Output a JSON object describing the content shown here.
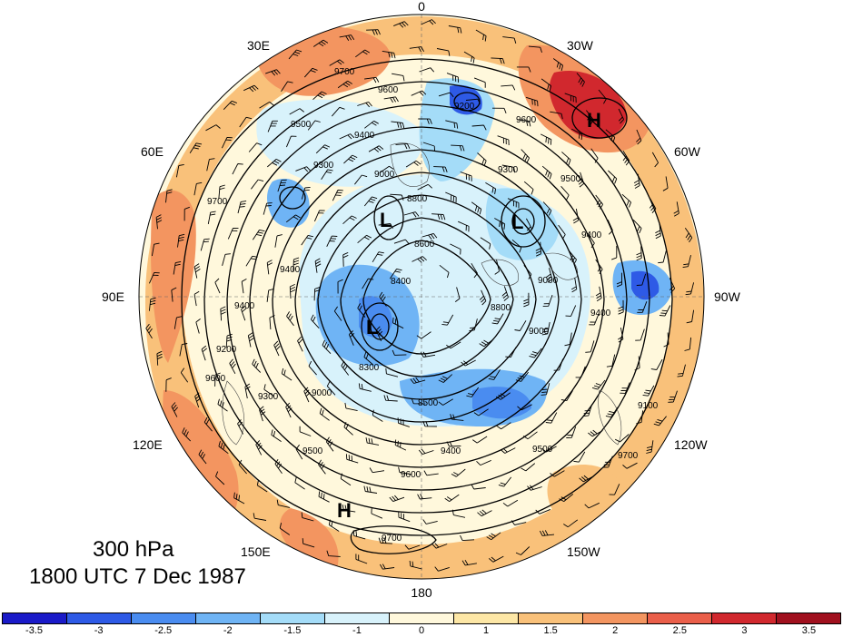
{
  "title": {
    "level": "300 hPa",
    "time": "1800 UTC 7 Dec 1987"
  },
  "longitude_labels": {
    "lon_0": "0",
    "lon_30e": "30E",
    "lon_30w": "30W",
    "lon_60e": "60E",
    "lon_60w": "60W",
    "lon_90e": "90E",
    "lon_90w": "90W",
    "lon_120e": "120E",
    "lon_120w": "120W",
    "lon_150e": "150E",
    "lon_150w": "150W",
    "lon_180": "180"
  },
  "pressure_centers": [
    {
      "type": "H",
      "label": "H"
    },
    {
      "type": "H",
      "label": "H"
    },
    {
      "type": "L",
      "label": "L"
    },
    {
      "type": "L",
      "label": "L"
    },
    {
      "type": "L",
      "label": "L"
    }
  ],
  "contour_labels": [
    "9700",
    "9600",
    "9500",
    "9400",
    "9300",
    "9200",
    "9000",
    "8800",
    "8600",
    "8400",
    "8300",
    "8500",
    "9100"
  ],
  "colorbar": {
    "colors": [
      "#1a1ac8",
      "#2e5ae6",
      "#4a8cf0",
      "#6fb4f5",
      "#a4dcf8",
      "#d8f2fb",
      "#fff8dc",
      "#fde7a6",
      "#f9c17a",
      "#f39560",
      "#ea5f4a",
      "#d1282e",
      "#a0101e"
    ],
    "ticks": [
      "-3.5",
      "-3",
      "-2.5",
      "-2",
      "-1.5",
      "-1",
      "0",
      "1",
      "1.5",
      "2",
      "2.5",
      "3",
      "3.5"
    ]
  }
}
